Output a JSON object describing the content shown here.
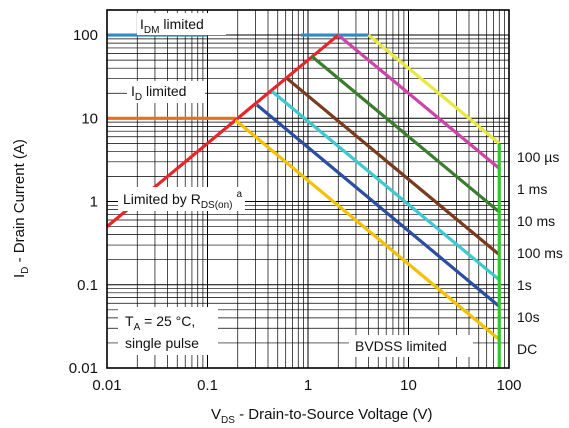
{
  "chart_data": {
    "type": "line",
    "title": "",
    "xlabel": "V_DS - Drain-to-Source Voltage (V)",
    "ylabel": "I_D - Drain Current (A)",
    "x_scale": "log",
    "y_scale": "log",
    "xlim": [
      0.01,
      100
    ],
    "ylim": [
      0.01,
      200
    ],
    "grid": true,
    "x_tick_labels": [
      "0.01",
      "0.1",
      "1",
      "10",
      "100"
    ],
    "y_tick_labels": [
      "0.01",
      "0.1",
      "1",
      "10",
      "100"
    ],
    "x_ticks": [
      0.01,
      0.1,
      1,
      10,
      100
    ],
    "y_ticks": [
      0.01,
      0.1,
      1,
      10,
      100
    ],
    "series": [
      {
        "name": "100 µs",
        "color": "#e8e840",
        "points": [
          [
            4,
            100
          ],
          [
            80,
            5
          ]
        ]
      },
      {
        "name": "1 ms",
        "color": "#cc44aa",
        "points": [
          [
            2,
            100
          ],
          [
            80,
            2.5
          ]
        ]
      },
      {
        "name": "10 ms",
        "color": "#3a7d2c",
        "points": [
          [
            1.1,
            55
          ],
          [
            80,
            0.75
          ]
        ]
      },
      {
        "name": "100 ms",
        "color": "#7a3b1e",
        "points": [
          [
            0.62,
            30
          ],
          [
            80,
            0.23
          ]
        ]
      },
      {
        "name": "1s",
        "color": "#40c8d0",
        "points": [
          [
            0.44,
            21
          ],
          [
            80,
            0.115
          ]
        ]
      },
      {
        "name": "10s",
        "color": "#2a4ea0",
        "points": [
          [
            0.31,
            14.5
          ],
          [
            80,
            0.055
          ]
        ]
      },
      {
        "name": "DC",
        "color": "#f5c000",
        "points": [
          [
            0.19,
            9.5
          ],
          [
            80,
            0.022
          ]
        ]
      }
    ],
    "limits": {
      "idm_line": {
        "color": "#2e8bc9",
        "y": 100,
        "x_segments": [
          [
            0.01,
            0.1
          ],
          [
            0.85,
            4
          ]
        ]
      },
      "id_line": {
        "color": "#f06a20",
        "y": 10,
        "x_range": [
          0.01,
          0.19
        ]
      },
      "rds_line": {
        "color": "#e8262a",
        "points": [
          [
            0.01,
            0.5
          ],
          [
            2,
            100
          ]
        ]
      },
      "bvdss_line": {
        "color": "#2ec82e",
        "x": 80,
        "y_range": [
          0.01,
          5
        ]
      }
    },
    "annotations": {
      "idm_main": "I",
      "idm_sub": "DM",
      "idm_rest": " limited",
      "id_main": "I",
      "id_sub": "D",
      "id_rest": " limited",
      "rds_main": "Limited by R",
      "rds_sub": "DS(on)",
      "rds_sup": "a",
      "ta_main": "T",
      "ta_sub": "A",
      "ta_rest": " = 25 °C,",
      "pulse": "single pulse",
      "bvdss": "BVDSS limited"
    },
    "axis_text": {
      "y_main": "I",
      "y_sub": "D",
      "y_rest": " - Drain Current (A)",
      "x_main": "V",
      "x_sub": "DS",
      "x_rest": " - Drain-to-Source Voltage (V)"
    }
  }
}
